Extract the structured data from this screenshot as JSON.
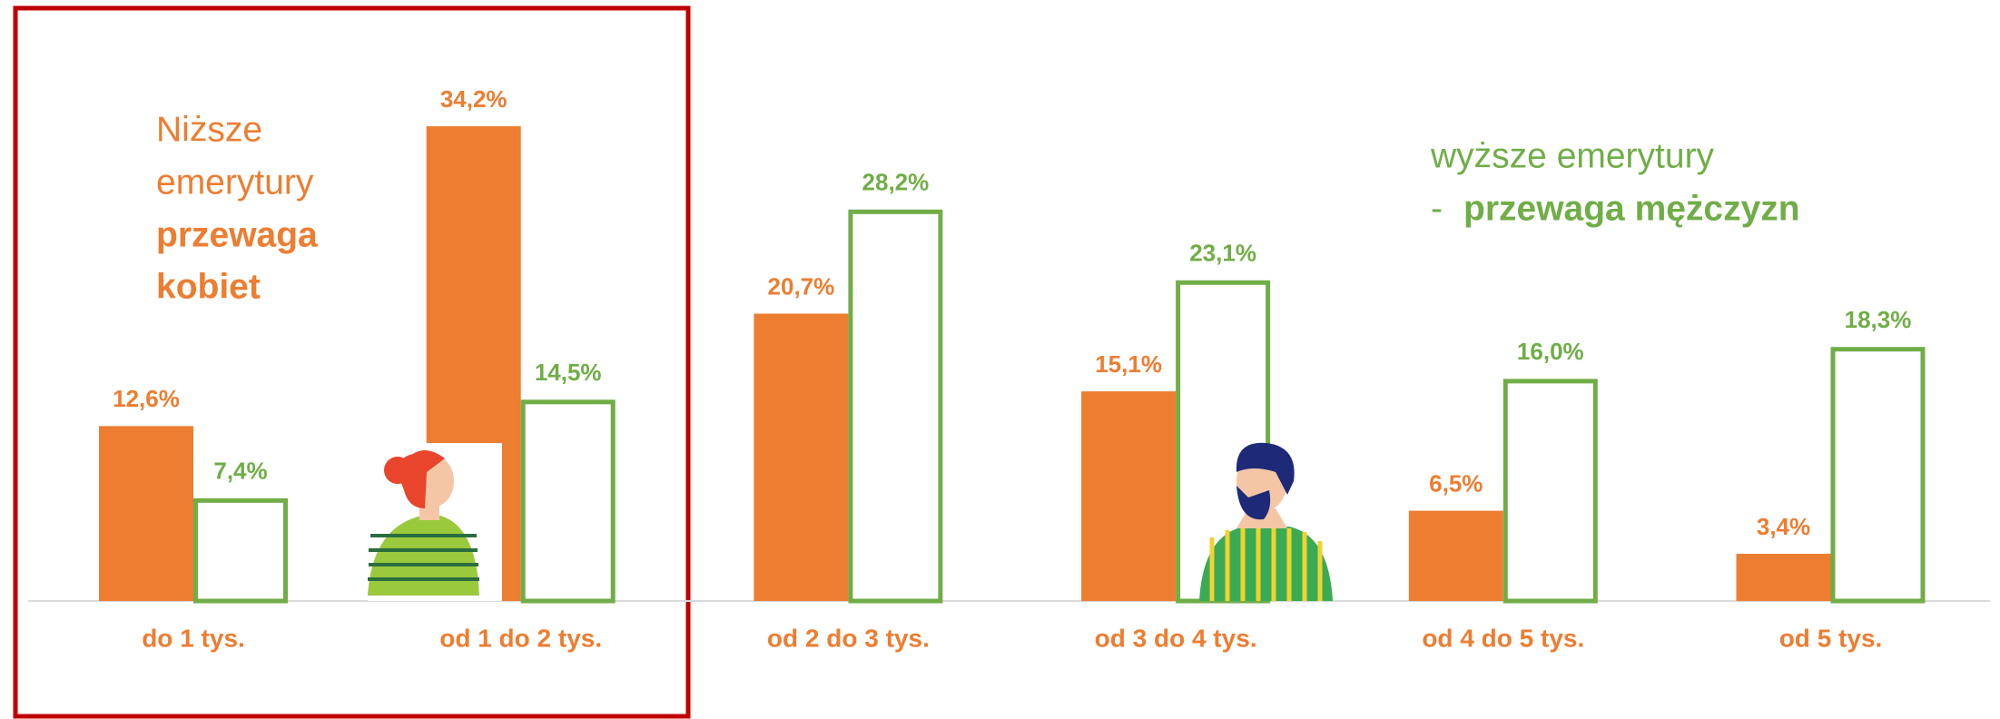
{
  "chart_data": {
    "type": "bar",
    "categories": [
      "do 1 tys.",
      "od 1 do 2 tys.",
      "od 2 do 3 tys.",
      "od 3 do 4 tys.",
      "od 4 do 5 tys.",
      "od 5 tys."
    ],
    "series": [
      {
        "color": "#ED7D31",
        "values": [
          12.6,
          34.2,
          20.7,
          15.1,
          6.5,
          3.4
        ],
        "value_labels": [
          "12,6%",
          "34,2%",
          "20,7%",
          "15,1%",
          "6,5%",
          "3,4%"
        ]
      },
      {
        "color": "#70AD47",
        "values": [
          7.4,
          14.5,
          28.2,
          23.1,
          16.0,
          18.3
        ],
        "value_labels": [
          "7,4%",
          "14,5%",
          "28,2%",
          "23,1%",
          "16,0%",
          "18,3%"
        ]
      }
    ],
    "annotations": [
      "Niższe",
      "emerytury",
      "przewaga",
      "kobiet",
      "wyższe emerytury",
      "-",
      "przewaga mężczyzn"
    ]
  }
}
